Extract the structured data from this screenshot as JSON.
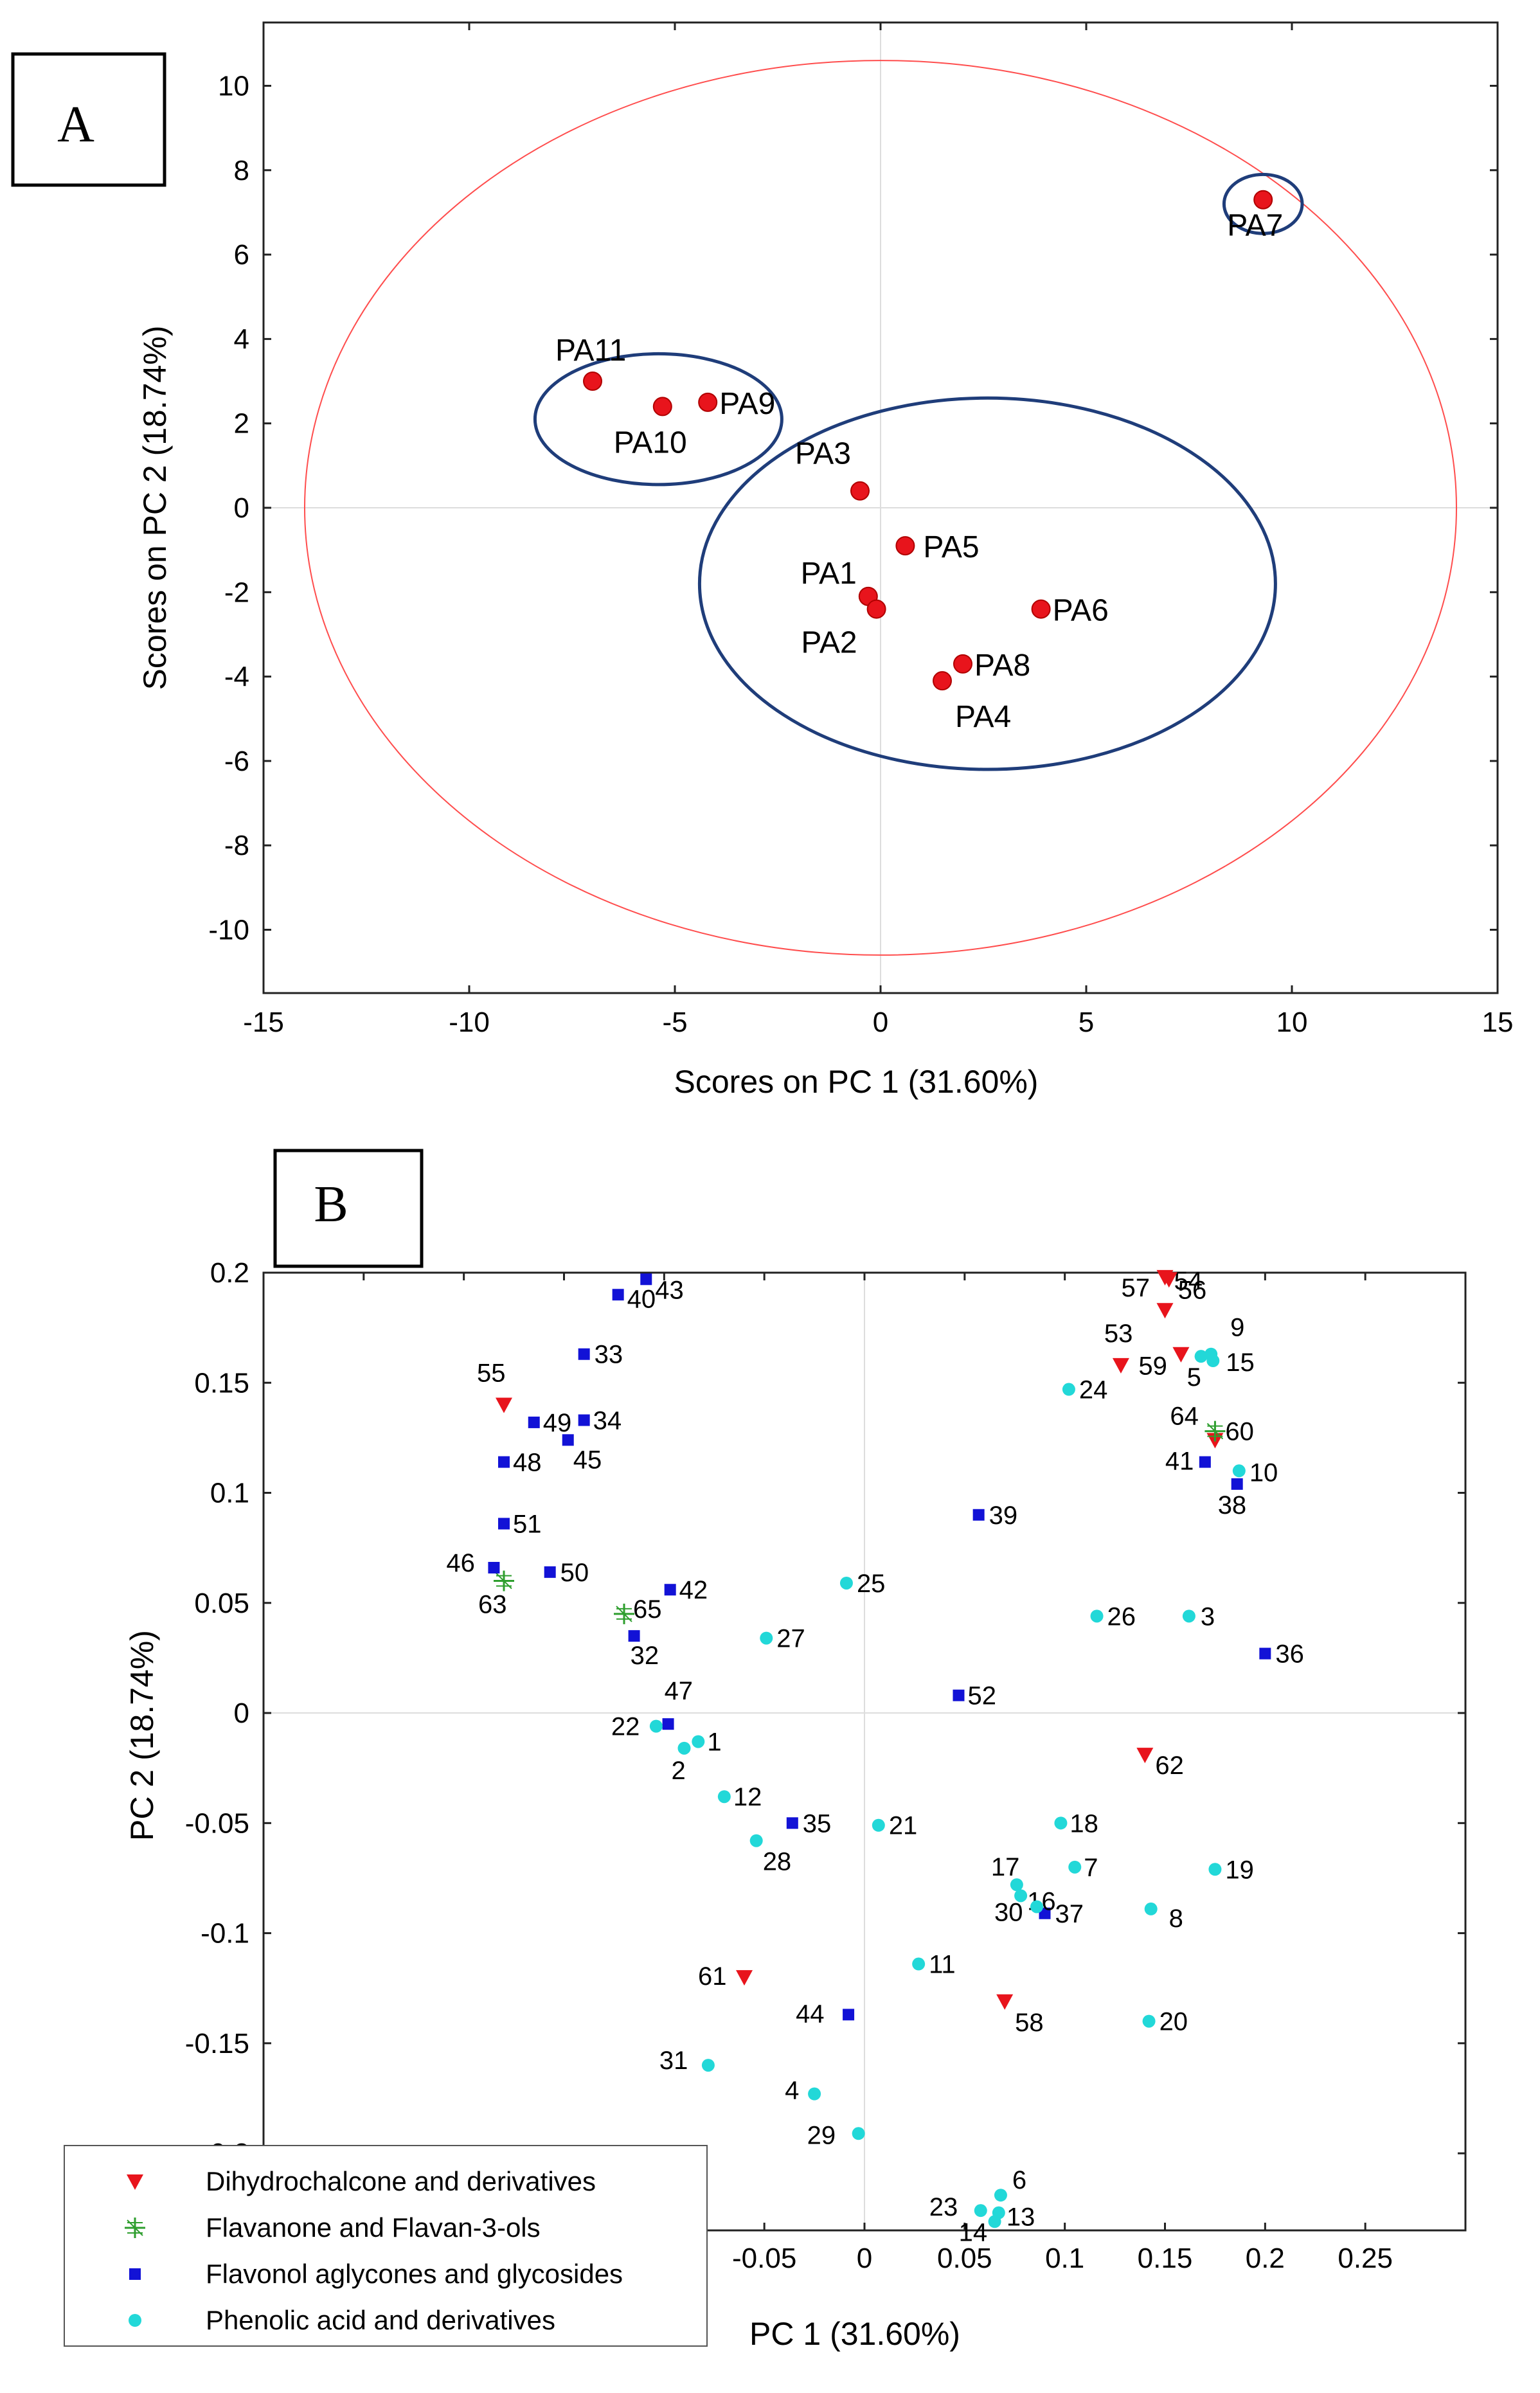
{
  "chart_data": [
    {
      "type": "scatter",
      "panel_label": "A",
      "xlabel": "Scores on PC 1 (31.60%)",
      "ylabel": "Scores on PC 2 (18.74%)",
      "xlim": [
        -15,
        15
      ],
      "ylim": [
        -11.5,
        11.5
      ],
      "xticks": [
        -15,
        -10,
        -5,
        0,
        5,
        10,
        15
      ],
      "yticks": [
        -10,
        -8,
        -6,
        -4,
        -2,
        0,
        2,
        4,
        6,
        8,
        10
      ],
      "confidence_ellipse": {
        "cx": 0,
        "cy": 0,
        "rx": 14,
        "ry": 10.6,
        "color": "#ff4d4d"
      },
      "group_ellipses": [
        {
          "cx": -5.4,
          "cy": 2.1,
          "rx": 3.0,
          "ry": 1.55
        },
        {
          "cx": 2.6,
          "cy": -1.8,
          "rx": 7.0,
          "ry": 4.4
        },
        {
          "cx": 9.3,
          "cy": 7.2,
          "rx": 0.95,
          "ry": 0.7
        }
      ],
      "points": [
        {
          "label": "PA1",
          "x": -0.3,
          "y": -2.1
        },
        {
          "label": "PA2",
          "x": -0.1,
          "y": -2.4
        },
        {
          "label": "PA3",
          "x": -0.5,
          "y": 0.4
        },
        {
          "label": "PA4",
          "x": 1.5,
          "y": -4.1
        },
        {
          "label": "PA5",
          "x": 0.6,
          "y": -0.9
        },
        {
          "label": "PA6",
          "x": 3.9,
          "y": -2.4
        },
        {
          "label": "PA7",
          "x": 9.3,
          "y": 7.3
        },
        {
          "label": "PA8",
          "x": 2.0,
          "y": -3.7
        },
        {
          "label": "PA9",
          "x": -4.2,
          "y": 2.5
        },
        {
          "label": "PA10",
          "x": -5.3,
          "y": 2.4
        },
        {
          "label": "PA11",
          "x": -7.0,
          "y": 3.0
        }
      ],
      "point_color": "#e8141c",
      "ellipse_color": "#1f3d7a"
    },
    {
      "type": "scatter",
      "panel_label": "B",
      "xlabel": "PC 1 (31.60%)",
      "ylabel": "PC 2 (18.74%)",
      "xlim": [
        -0.3,
        0.3
      ],
      "ylim": [
        -0.235,
        0.2
      ],
      "xticks": [
        -0.05,
        0,
        0.05,
        0.1,
        0.15,
        0.2,
        0.25
      ],
      "xtick_labels": [
        "-0.05",
        "0",
        "0.05",
        "0.1",
        "0.15",
        "0.2",
        "0.25"
      ],
      "yticks": [
        0.2,
        0.15,
        0.1,
        0.05,
        0,
        -0.05,
        -0.1,
        -0.15,
        -0.2
      ],
      "ytick_labels": [
        "0.2",
        "0.15",
        "0.1",
        "0.05",
        "0",
        "-0.05",
        "-0.1",
        "-0.15",
        "-0.2"
      ],
      "legend": [
        {
          "label": "Dihydrochalcone and derivatives",
          "marker": "triangle",
          "color": "#e8141c"
        },
        {
          "label": "Flavanone and Flavan-3-ols",
          "marker": "star",
          "color": "#2e9e2e"
        },
        {
          "label": "Flavonol aglycones and glycosides",
          "marker": "square",
          "color": "#1212d6"
        },
        {
          "label": "Phenolic acid and derivatives",
          "marker": "circle",
          "color": "#22d8d8"
        }
      ],
      "legend_position": "bottom-left",
      "series": {
        "Dihydrochalcone and derivatives": [
          {
            "label": "53",
            "x": 0.128,
            "y": 0.158
          },
          {
            "label": "54",
            "x": 0.15,
            "y": 0.183
          },
          {
            "label": "55",
            "x": -0.18,
            "y": 0.14
          },
          {
            "label": "56",
            "x": 0.152,
            "y": 0.197
          },
          {
            "label": "57",
            "x": 0.15,
            "y": 0.198
          },
          {
            "label": "58",
            "x": 0.07,
            "y": -0.131
          },
          {
            "label": "59",
            "x": 0.158,
            "y": 0.163
          },
          {
            "label": "60",
            "x": 0.175,
            "y": 0.124
          },
          {
            "label": "61",
            "x": -0.06,
            "y": -0.12
          },
          {
            "label": "62",
            "x": 0.14,
            "y": -0.019
          }
        ],
        "Flavanone and Flavan-3-ols": [
          {
            "label": "63",
            "x": -0.18,
            "y": 0.06
          },
          {
            "label": "64",
            "x": 0.175,
            "y": 0.128
          },
          {
            "label": "65",
            "x": -0.12,
            "y": 0.045
          }
        ],
        "Flavonol aglycones and glycosides": [
          {
            "label": "32",
            "x": -0.115,
            "y": 0.035
          },
          {
            "label": "33",
            "x": -0.14,
            "y": 0.163
          },
          {
            "label": "34",
            "x": -0.14,
            "y": 0.133
          },
          {
            "label": "35",
            "x": -0.036,
            "y": -0.05
          },
          {
            "label": "36",
            "x": 0.2,
            "y": 0.027
          },
          {
            "label": "37",
            "x": 0.09,
            "y": -0.091
          },
          {
            "label": "38",
            "x": 0.186,
            "y": 0.104
          },
          {
            "label": "39",
            "x": 0.057,
            "y": 0.09
          },
          {
            "label": "40",
            "x": -0.123,
            "y": 0.19
          },
          {
            "label": "41",
            "x": 0.17,
            "y": 0.114
          },
          {
            "label": "42",
            "x": -0.097,
            "y": 0.056
          },
          {
            "label": "43",
            "x": -0.109,
            "y": 0.197
          },
          {
            "label": "44",
            "x": -0.008,
            "y": -0.137
          },
          {
            "label": "45",
            "x": -0.148,
            "y": 0.124
          },
          {
            "label": "46",
            "x": -0.185,
            "y": 0.066
          },
          {
            "label": "47",
            "x": -0.098,
            "y": -0.005
          },
          {
            "label": "48",
            "x": -0.18,
            "y": 0.114
          },
          {
            "label": "49",
            "x": -0.165,
            "y": 0.132
          },
          {
            "label": "50",
            "x": -0.157,
            "y": 0.064
          },
          {
            "label": "51",
            "x": -0.18,
            "y": 0.086
          },
          {
            "label": "52",
            "x": 0.047,
            "y": 0.008
          }
        ],
        "Phenolic acid and derivatives": [
          {
            "label": "1",
            "x": -0.083,
            "y": -0.013
          },
          {
            "label": "2",
            "x": -0.09,
            "y": -0.016
          },
          {
            "label": "3",
            "x": 0.162,
            "y": 0.044
          },
          {
            "label": "4",
            "x": -0.025,
            "y": -0.173
          },
          {
            "label": "5",
            "x": 0.168,
            "y": 0.162
          },
          {
            "label": "6",
            "x": 0.068,
            "y": -0.219
          },
          {
            "label": "7",
            "x": 0.105,
            "y": -0.07
          },
          {
            "label": "8",
            "x": 0.143,
            "y": -0.089
          },
          {
            "label": "9",
            "x": 0.173,
            "y": 0.163
          },
          {
            "label": "10",
            "x": 0.187,
            "y": 0.11
          },
          {
            "label": "11",
            "x": 0.027,
            "y": -0.114
          },
          {
            "label": "12",
            "x": -0.07,
            "y": -0.038
          },
          {
            "label": "13",
            "x": 0.067,
            "y": -0.227
          },
          {
            "label": "14",
            "x": 0.065,
            "y": -0.231
          },
          {
            "label": "15",
            "x": 0.174,
            "y": 0.16
          },
          {
            "label": "16",
            "x": 0.078,
            "y": -0.083
          },
          {
            "label": "17",
            "x": 0.076,
            "y": -0.078
          },
          {
            "label": "18",
            "x": 0.098,
            "y": -0.05
          },
          {
            "label": "19",
            "x": 0.175,
            "y": -0.071
          },
          {
            "label": "20",
            "x": 0.142,
            "y": -0.14
          },
          {
            "label": "21",
            "x": 0.007,
            "y": -0.051
          },
          {
            "label": "22",
            "x": -0.104,
            "y": -0.006
          },
          {
            "label": "23",
            "x": 0.058,
            "y": -0.226
          },
          {
            "label": "24",
            "x": 0.102,
            "y": 0.147
          },
          {
            "label": "25",
            "x": -0.009,
            "y": 0.059
          },
          {
            "label": "26",
            "x": 0.116,
            "y": 0.044
          },
          {
            "label": "27",
            "x": -0.049,
            "y": 0.034
          },
          {
            "label": "28",
            "x": -0.054,
            "y": -0.058
          },
          {
            "label": "29",
            "x": -0.003,
            "y": -0.191
          },
          {
            "label": "30",
            "x": 0.086,
            "y": -0.088
          },
          {
            "label": "31",
            "x": -0.078,
            "y": -0.16
          }
        ]
      }
    }
  ]
}
